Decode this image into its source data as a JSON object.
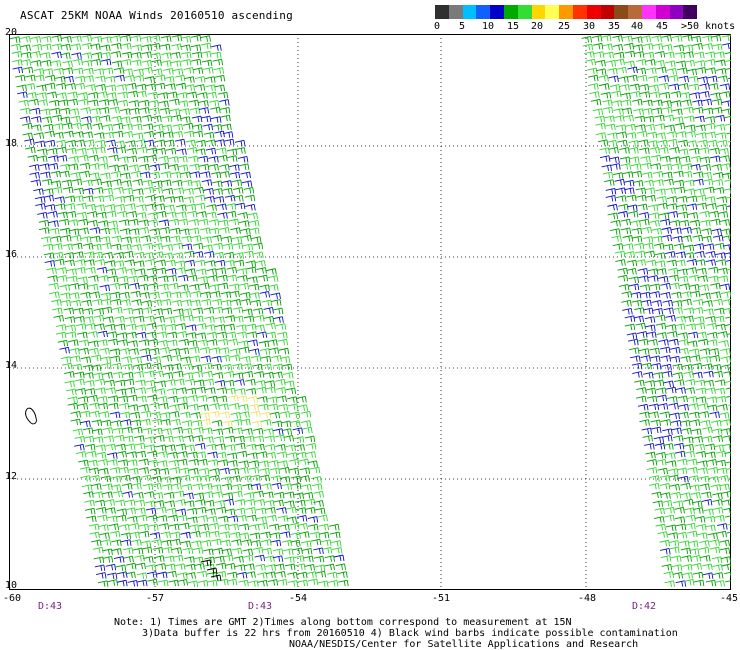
{
  "title": "ASCAT 25KM NOAA Winds 20160510 ascending",
  "legend": {
    "colors": [
      "#303030",
      "#7a7a7a",
      "#00bfff",
      "#1060ff",
      "#0000c8",
      "#00aa00",
      "#33dd33",
      "#ffd700",
      "#ffff55",
      "#ff9900",
      "#ff3300",
      "#ee0000",
      "#c00000",
      "#8a4a1a",
      "#b86a3a",
      "#ff33ff",
      "#d000d0",
      "#9000c0",
      "#400060"
    ],
    "labels": [
      "0",
      "5",
      "10",
      "15",
      "20",
      "25",
      "30",
      "35",
      "40",
      "45",
      ">50 knots"
    ]
  },
  "axes": {
    "y_labels": [
      "20",
      "18",
      "16",
      "14",
      "12",
      "10"
    ],
    "x_labels": [
      "-60",
      "-57",
      "-54",
      "-51",
      "-48",
      "-45"
    ],
    "time_labels": [
      "D:43",
      "D:43",
      "D:42"
    ]
  },
  "notes": [
    "Note: 1) Times are GMT 2)Times along bottom correspond to measurement at 15N",
    "3)Data buffer is 22 hrs from 20160510 4) Black wind barbs indicate possible contamination",
    "NOAA/NESDIS/Center for Satellite Applications and Research"
  ],
  "map": {
    "lon_range": [
      -60,
      -45
    ],
    "lat_range": [
      10,
      20
    ],
    "swaths": [
      {
        "name": "west swath",
        "dominant_speed_kt": "15-25",
        "colors": [
          "#00aa00",
          "#33dd33",
          "#0000c8"
        ]
      },
      {
        "name": "east swath",
        "dominant_speed_kt": "15-25",
        "colors": [
          "#00aa00",
          "#33dd33",
          "#0000c8"
        ]
      }
    ],
    "island": "Barbados"
  }
}
